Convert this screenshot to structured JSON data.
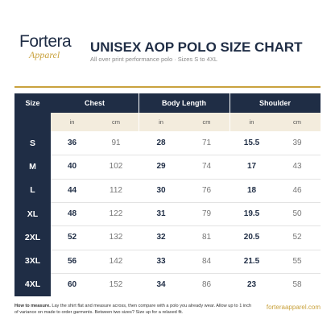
{
  "header": {
    "logo_main": "Fortera",
    "logo_sub": "Apparel",
    "title": "UNISEX AOP POLO SIZE CHART",
    "subtitle": "All over print performance polo · Sizes S to 4XL"
  },
  "table": {
    "columns": [
      "Size",
      "Chest",
      "Body Length",
      "Shoulder"
    ],
    "units": [
      "in",
      "cm",
      "in",
      "cm",
      "in",
      "cm"
    ],
    "rows": [
      [
        "S",
        36,
        91,
        28,
        71,
        15.5,
        39
      ],
      [
        "M",
        40,
        102,
        29,
        74,
        17,
        43
      ],
      [
        "L",
        44,
        112,
        30,
        76,
        18,
        46
      ],
      [
        "XL",
        48,
        122,
        31,
        79,
        19.5,
        50
      ],
      [
        "2XL",
        52,
        132,
        32,
        81,
        20.5,
        52
      ],
      [
        "3XL",
        56,
        142,
        33,
        84,
        21.5,
        55
      ],
      [
        "4XL",
        60,
        152,
        34,
        86,
        23,
        58
      ]
    ]
  },
  "footer": {
    "note_label": "How to measure.",
    "note": "Lay the shirt flat and measure across, then compare with a polo you already wear. Allow up to 1 inch of variance on made to order garments. Between two sizes? Size up for a relaxed fit.",
    "url": "forteraapparel.com"
  }
}
